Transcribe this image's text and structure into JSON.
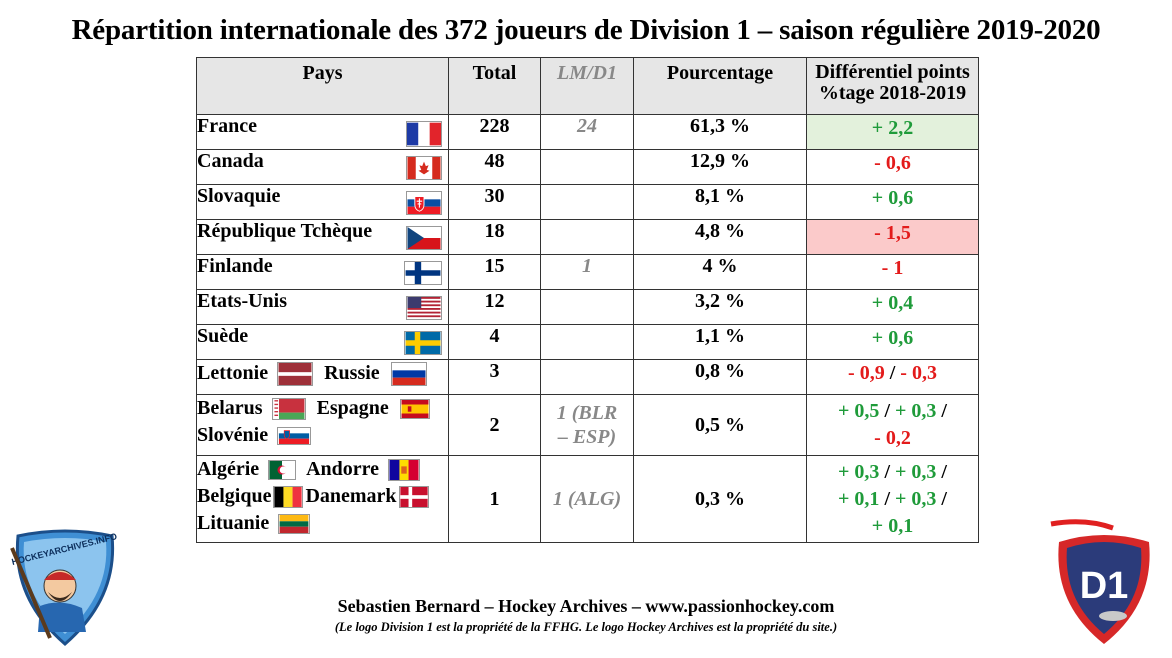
{
  "title": "Répartition internationale des 372 joueurs de Division 1 – saison régulière 2019-2020",
  "headers": {
    "country": "Pays",
    "total": "Total",
    "lm": "LM/D1",
    "pct": "Pourcentage",
    "diff_line1": "Différentiel points",
    "diff_line2": "%tage 2018-2019"
  },
  "rows": [
    {
      "country": "France",
      "total": "228",
      "lm": "24",
      "pct": "61,3 %",
      "diff": "+ 2,2"
    },
    {
      "country": "Canada",
      "total": "48",
      "lm": "",
      "pct": "12,9 %",
      "diff": "- 0,6"
    },
    {
      "country": "Slovaquie",
      "total": "30",
      "lm": "",
      "pct": "8,1 %",
      "diff": "+ 0,6"
    },
    {
      "country": "République Tchèque",
      "total": "18",
      "lm": "",
      "pct": "4,8 %",
      "diff": "- 1,5"
    },
    {
      "country": "Finlande",
      "total": "15",
      "lm": "1",
      "pct": "4 %",
      "diff": "- 1"
    },
    {
      "country": "Etats-Unis",
      "total": "12",
      "lm": "",
      "pct": "3,2 %",
      "diff": "+ 0,4"
    },
    {
      "country": "Suède",
      "total": "4",
      "lm": "",
      "pct": "1,1 %",
      "diff": "+ 0,6"
    },
    {
      "country_a": "Lettonie",
      "country_b": "Russie",
      "total": "3",
      "lm": "",
      "pct": "0,8 %",
      "diff_a": "- 0,9",
      "sep": "/",
      "diff_b": "- 0,3"
    },
    {
      "country_a": "Belarus",
      "country_b": "Espagne",
      "country_c": "Slovénie",
      "total": "2",
      "lm_line1": "1 (BLR",
      "lm_line2": "– ESP)",
      "pct": "0,5 %",
      "diff_a": "+ 0,5",
      "sep1": "/",
      "diff_b": "+ 0,3",
      "sep2": "/",
      "diff_c": "- 0,2"
    },
    {
      "country_a": "Algérie",
      "country_b": "Andorre",
      "country_c": "Belgique",
      "country_d": "Danemark",
      "country_e": "Lituanie",
      "total": "1",
      "lm": "1 (ALG)",
      "pct": "0,3 %",
      "diff_a": "+ 0,3",
      "sep1": "/",
      "diff_b": "+ 0,3",
      "sep2": "/",
      "diff_c": "+ 0,1",
      "sep3": "/",
      "diff_d": "+ 0,3",
      "sep4": "/",
      "diff_e": "+ 0,1"
    }
  ],
  "footer": {
    "credit": "Sebastien Bernard – Hockey Archives – www.passionhockey.com",
    "note": "(Le logo Division 1 est la propriété de la FFHG. Le logo Hockey Archives est la propriété du site.)"
  },
  "logos": {
    "left_text": "HOCKEYARCHIVES.INFO",
    "right_text": "D1"
  },
  "colors": {
    "positive": "#1f9b3a",
    "negative": "#e31b1b",
    "highlight_green": "#e3f1dc",
    "highlight_red": "#fbcaca",
    "header_bg": "#e6e6e6"
  }
}
